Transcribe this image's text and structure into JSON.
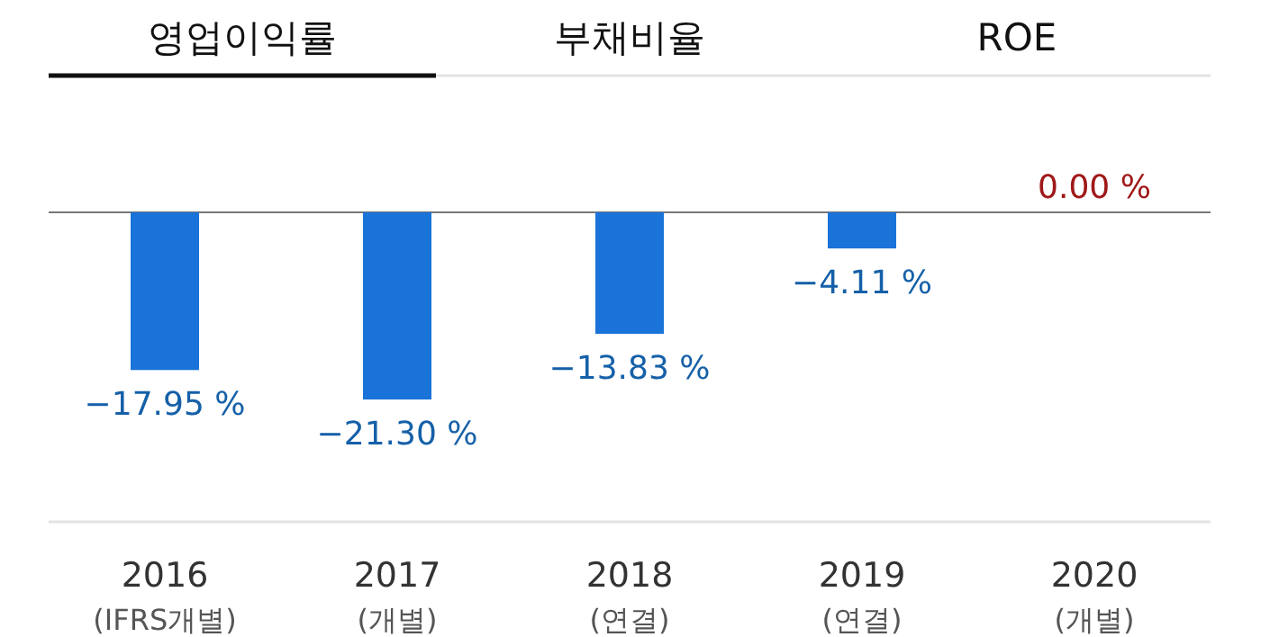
{
  "chart_data": {
    "type": "bar",
    "title": "영업이익률",
    "annotations": [
      "부채비율",
      "ROE"
    ],
    "categories": [
      "2016\n(IFRS개별)",
      "2017\n(개별)",
      "2018\n(연결)",
      "2019\n(연결)",
      "2020\n(개별)"
    ],
    "values": [
      -17.95,
      -21.3,
      -13.83,
      -4.11,
      0.0
    ],
    "value_labels": [
      "−17.95 %",
      "−21.30 %",
      "−13.83 %",
      "−4.11 %",
      "0.00 %"
    ],
    "colors": [
      "#1a73d9",
      "#1a73d9",
      "#1a73d9",
      "#1a73d9",
      "#1a73d9"
    ],
    "relative": false
  }
}
